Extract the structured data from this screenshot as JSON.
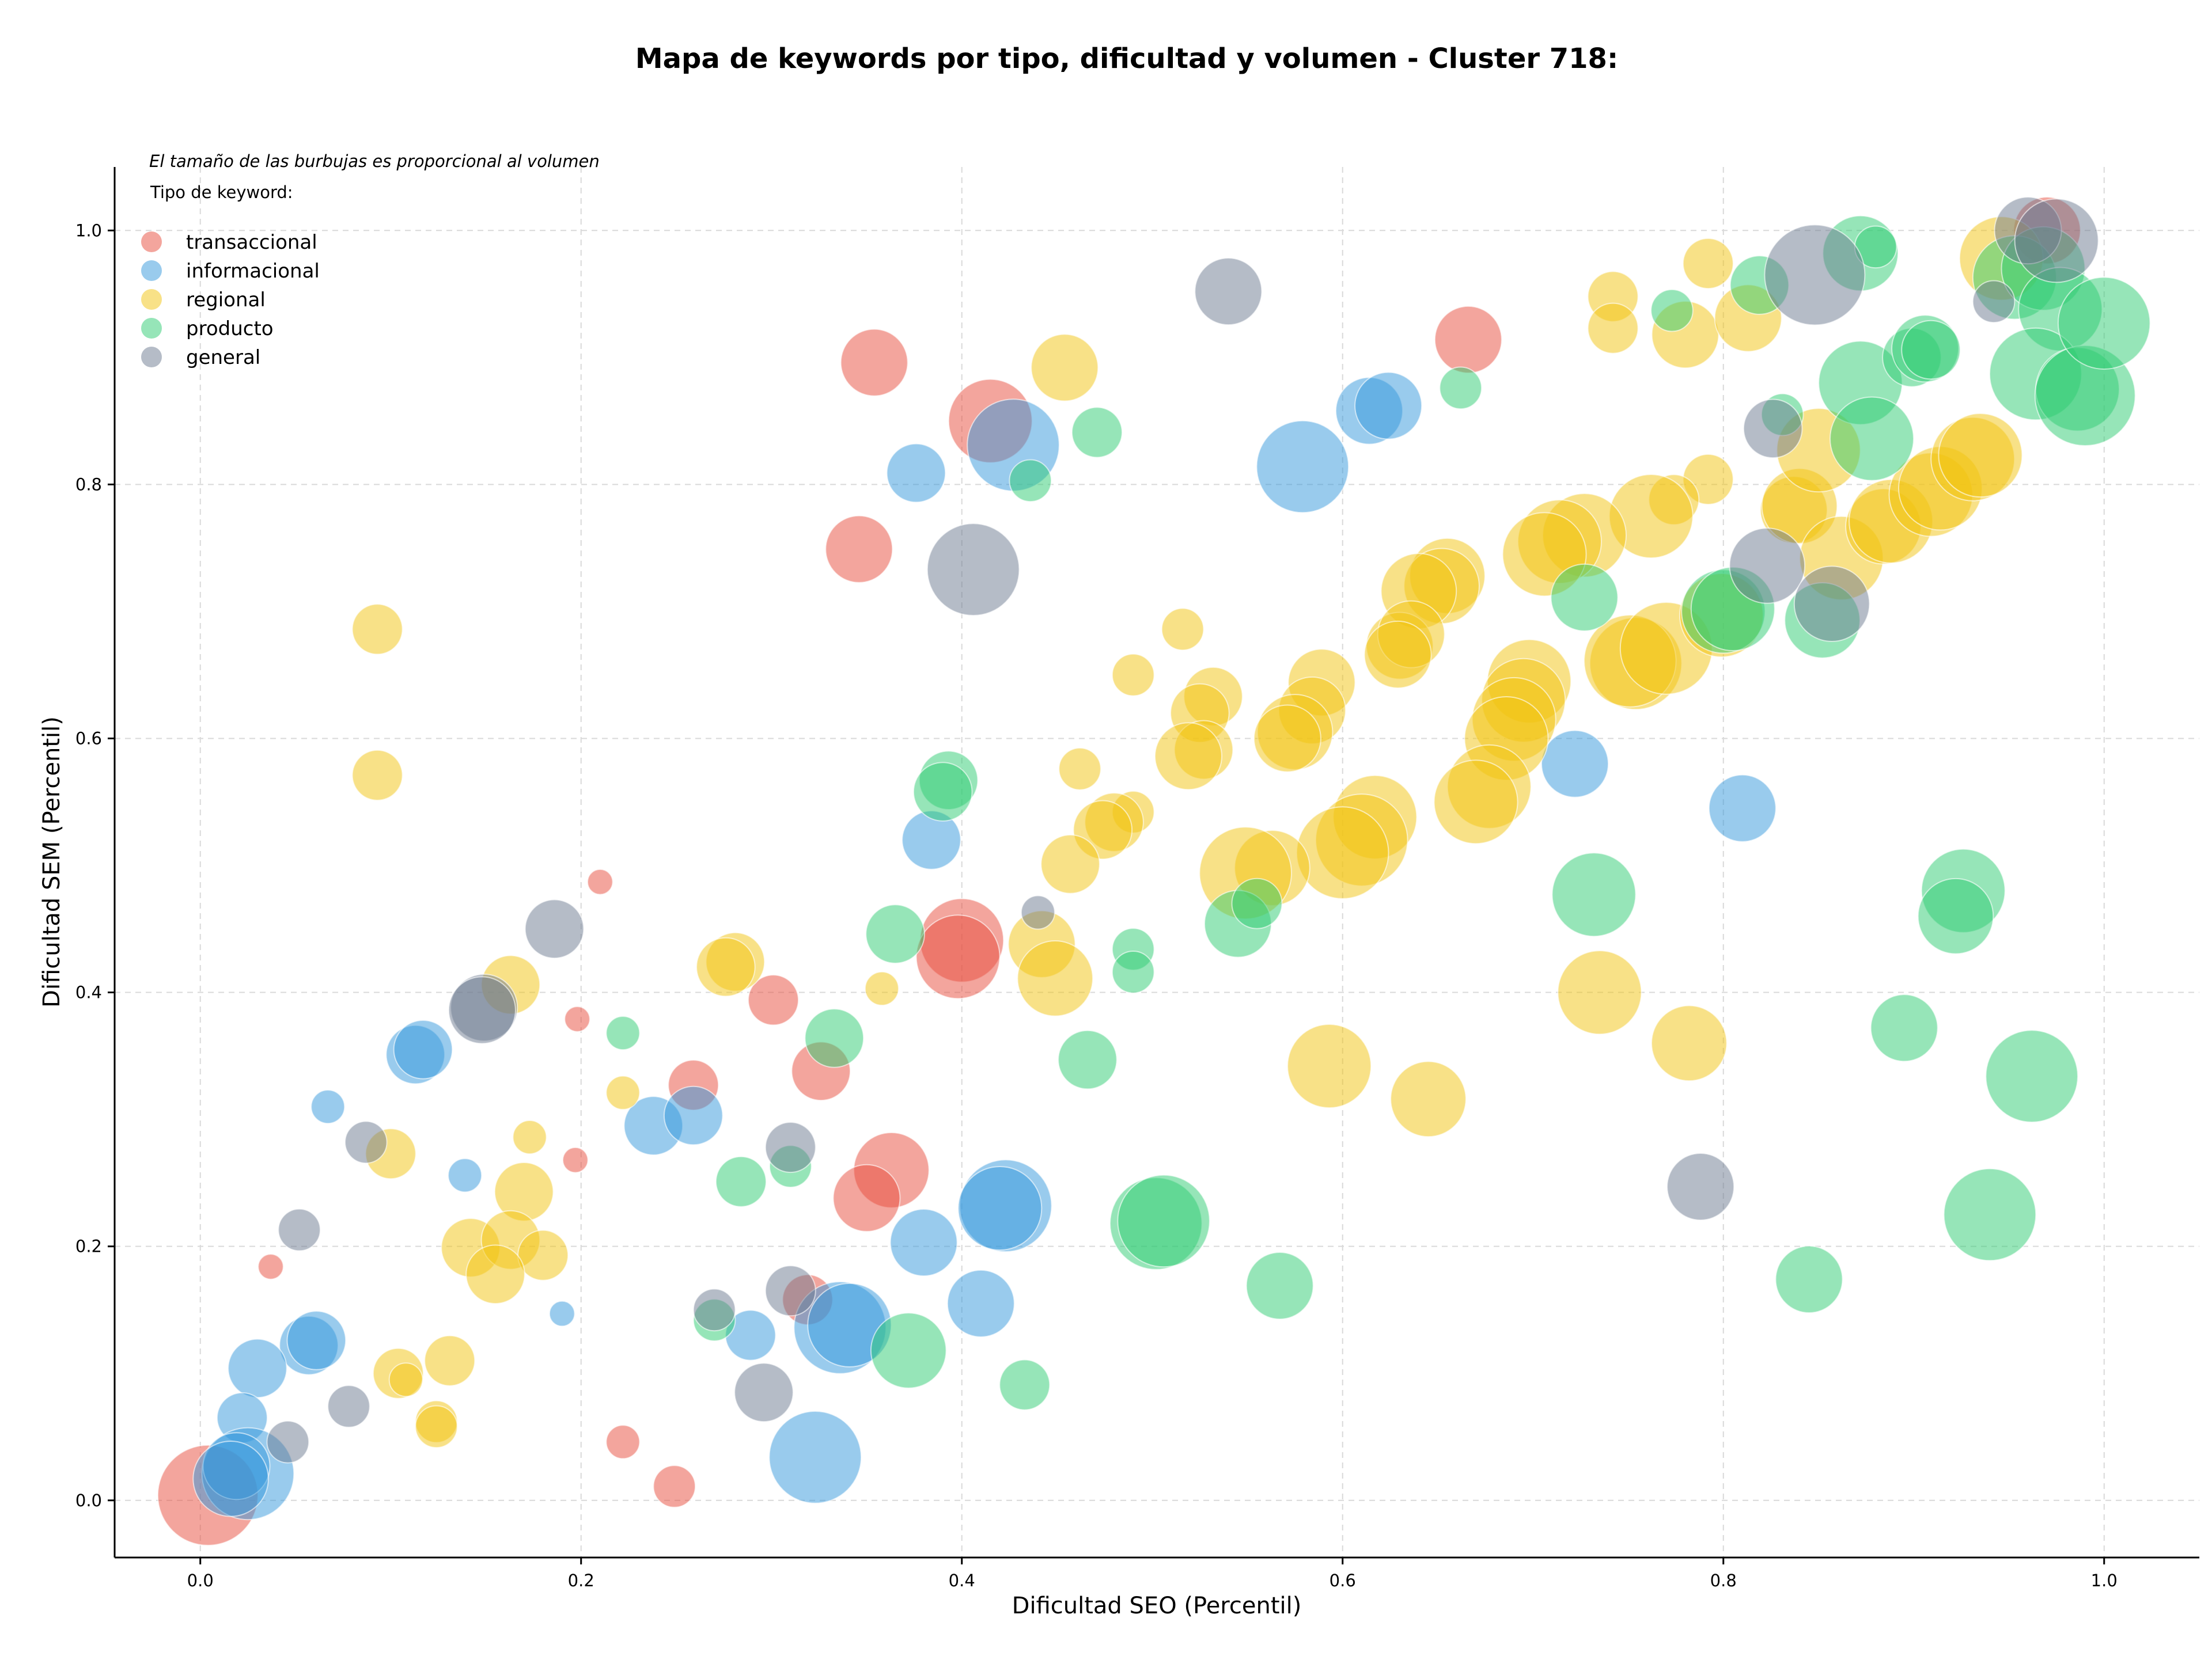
{
  "chart_data": {
    "type": "scatter",
    "title": "Mapa de keywords por tipo, dificultad y volumen - Cluster 718:",
    "xlabel": "Dificultad SEO (Percentil)",
    "ylabel": "Dificultad SEM (Percentil)",
    "note": "El tamaño de las burbujas es proporcional al volumen",
    "legend_title": "Tipo de keyword:",
    "legend_position": "top-left",
    "xlim": [
      -0.045,
      1.05
    ],
    "ylim": [
      -0.045,
      1.05
    ],
    "xticks": [
      0.0,
      0.2,
      0.4,
      0.6,
      0.8,
      1.0
    ],
    "yticks": [
      0.0,
      0.2,
      0.4,
      0.6,
      0.8,
      1.0
    ],
    "xtick_labels": [
      "0.0",
      "0.2",
      "0.4",
      "0.6",
      "0.8",
      "1.0"
    ],
    "ytick_labels": [
      "0.0",
      "0.2",
      "0.4",
      "0.6",
      "0.8",
      "1.0"
    ],
    "grid": true,
    "size_encoding": "volume",
    "series": [
      {
        "name": "transaccional",
        "color": "#e74c3c",
        "points": [
          [
            0.004,
            0.004,
            6
          ],
          [
            0.354,
            0.896,
            4
          ],
          [
            0.415,
            0.85,
            5
          ],
          [
            0.346,
            0.749,
            4
          ],
          [
            0.666,
            0.914,
            4
          ],
          [
            0.97,
            1.0,
            4
          ],
          [
            0.4,
            0.441,
            5
          ],
          [
            0.398,
            0.428,
            5
          ],
          [
            0.21,
            0.487,
            1.5
          ],
          [
            0.198,
            0.379,
            1.5
          ],
          [
            0.301,
            0.394,
            3
          ],
          [
            0.259,
            0.327,
            3
          ],
          [
            0.197,
            0.268,
            1.5
          ],
          [
            0.326,
            0.338,
            3.5
          ],
          [
            0.363,
            0.26,
            4.5
          ],
          [
            0.35,
            0.238,
            4
          ],
          [
            0.037,
            0.184,
            1.5
          ],
          [
            0.319,
            0.158,
            3
          ],
          [
            0.222,
            0.046,
            2
          ],
          [
            0.249,
            0.011,
            2.5
          ]
        ]
      },
      {
        "name": "informacional",
        "color": "#3498db",
        "points": [
          [
            0.376,
            0.809,
            3.5
          ],
          [
            0.427,
            0.831,
            5.5
          ],
          [
            0.579,
            0.814,
            5.5
          ],
          [
            0.614,
            0.858,
            4
          ],
          [
            0.624,
            0.862,
            4
          ],
          [
            0.722,
            0.58,
            4
          ],
          [
            0.81,
            0.545,
            4
          ],
          [
            0.384,
            0.52,
            3.5
          ],
          [
            0.113,
            0.351,
            3.5
          ],
          [
            0.117,
            0.355,
            3.5
          ],
          [
            0.067,
            0.31,
            2
          ],
          [
            0.238,
            0.295,
            3.5
          ],
          [
            0.259,
            0.303,
            3.5
          ],
          [
            0.139,
            0.256,
            2
          ],
          [
            0.423,
            0.232,
            5.5
          ],
          [
            0.42,
            0.23,
            5
          ],
          [
            0.38,
            0.203,
            4
          ],
          [
            0.41,
            0.155,
            4
          ],
          [
            0.19,
            0.147,
            1.5
          ],
          [
            0.336,
            0.136,
            5.5
          ],
          [
            0.341,
            0.138,
            5
          ],
          [
            0.289,
            0.13,
            3
          ],
          [
            0.057,
            0.122,
            3.5
          ],
          [
            0.061,
            0.126,
            3.5
          ],
          [
            0.03,
            0.104,
            3.5
          ],
          [
            0.022,
            0.065,
            3
          ],
          [
            0.025,
            0.021,
            5.5
          ],
          [
            0.019,
            0.027,
            4
          ],
          [
            0.016,
            0.017,
            4.5
          ],
          [
            0.323,
            0.034,
            5.5
          ]
        ]
      },
      {
        "name": "regional",
        "color": "#f1c40f",
        "points": [
          [
            0.093,
            0.686,
            3
          ],
          [
            0.093,
            0.571,
            3
          ],
          [
            0.454,
            0.892,
            4
          ],
          [
            0.742,
            0.948,
            3
          ],
          [
            0.742,
            0.923,
            3
          ],
          [
            0.792,
            0.974,
            3
          ],
          [
            0.78,
            0.918,
            4
          ],
          [
            0.813,
            0.931,
            4
          ],
          [
            0.792,
            0.804,
            3
          ],
          [
            0.774,
            0.788,
            3
          ],
          [
            0.762,
            0.775,
            5
          ],
          [
            0.727,
            0.76,
            5
          ],
          [
            0.714,
            0.755,
            5
          ],
          [
            0.706,
            0.745,
            5
          ],
          [
            0.655,
            0.728,
            4.5
          ],
          [
            0.652,
            0.72,
            4.5
          ],
          [
            0.64,
            0.716,
            4.5
          ],
          [
            0.63,
            0.673,
            4
          ],
          [
            0.636,
            0.682,
            4
          ],
          [
            0.629,
            0.666,
            4
          ],
          [
            0.698,
            0.645,
            5
          ],
          [
            0.695,
            0.63,
            5
          ],
          [
            0.69,
            0.615,
            5
          ],
          [
            0.686,
            0.6,
            5
          ],
          [
            0.677,
            0.562,
            5
          ],
          [
            0.67,
            0.55,
            5
          ],
          [
            0.617,
            0.538,
            5
          ],
          [
            0.61,
            0.52,
            5.5
          ],
          [
            0.6,
            0.51,
            5.5
          ],
          [
            0.589,
            0.644,
            4
          ],
          [
            0.584,
            0.622,
            4
          ],
          [
            0.575,
            0.605,
            4.5
          ],
          [
            0.571,
            0.6,
            4
          ],
          [
            0.532,
            0.633,
            3.5
          ],
          [
            0.525,
            0.62,
            3.5
          ],
          [
            0.527,
            0.591,
            3.5
          ],
          [
            0.519,
            0.586,
            4
          ],
          [
            0.516,
            0.686,
            2.5
          ],
          [
            0.49,
            0.65,
            2.5
          ],
          [
            0.462,
            0.576,
            2.5
          ],
          [
            0.49,
            0.542,
            2.5
          ],
          [
            0.48,
            0.534,
            3.5
          ],
          [
            0.474,
            0.528,
            3.5
          ],
          [
            0.457,
            0.501,
            3.5
          ],
          [
            0.563,
            0.498,
            4.5
          ],
          [
            0.549,
            0.494,
            5.5
          ],
          [
            0.442,
            0.438,
            4
          ],
          [
            0.449,
            0.411,
            4.5
          ],
          [
            0.358,
            0.403,
            2
          ],
          [
            0.163,
            0.406,
            3.5
          ],
          [
            0.281,
            0.424,
            3.5
          ],
          [
            0.276,
            0.42,
            3.5
          ],
          [
            0.754,
            0.659,
            5.5
          ],
          [
            0.751,
            0.661,
            5.5
          ],
          [
            0.77,
            0.671,
            5.5
          ],
          [
            0.799,
            0.697,
            5
          ],
          [
            0.837,
            0.78,
            4
          ],
          [
            0.84,
            0.783,
            4.5
          ],
          [
            0.85,
            0.827,
            5
          ],
          [
            0.862,
            0.742,
            5
          ],
          [
            0.884,
            0.767,
            4.5
          ],
          [
            0.888,
            0.771,
            5
          ],
          [
            0.909,
            0.792,
            5
          ],
          [
            0.914,
            0.797,
            5
          ],
          [
            0.931,
            0.82,
            5
          ],
          [
            0.935,
            0.823,
            5
          ],
          [
            0.946,
            0.978,
            5
          ],
          [
            0.735,
            0.4,
            5
          ],
          [
            0.782,
            0.36,
            4.5
          ],
          [
            0.593,
            0.342,
            5
          ],
          [
            0.645,
            0.316,
            4.5
          ],
          [
            0.1,
            0.273,
            3
          ],
          [
            0.173,
            0.286,
            2
          ],
          [
            0.222,
            0.321,
            2
          ],
          [
            0.17,
            0.243,
            3.5
          ],
          [
            0.142,
            0.199,
            3.5
          ],
          [
            0.163,
            0.205,
            3.5
          ],
          [
            0.18,
            0.193,
            3
          ],
          [
            0.155,
            0.178,
            3.5
          ],
          [
            0.131,
            0.11,
            3
          ],
          [
            0.104,
            0.1,
            3
          ],
          [
            0.108,
            0.095,
            2
          ],
          [
            0.124,
            0.062,
            2.5
          ],
          [
            0.124,
            0.058,
            2.5
          ]
        ]
      },
      {
        "name": "producto",
        "color": "#2ecc71",
        "points": [
          [
            0.872,
            0.982,
            4.5
          ],
          [
            0.819,
            0.957,
            3.5
          ],
          [
            0.773,
            0.937,
            2.5
          ],
          [
            0.662,
            0.876,
            2.5
          ],
          [
            0.471,
            0.841,
            3
          ],
          [
            0.436,
            0.803,
            2.5
          ],
          [
            0.393,
            0.567,
            3.5
          ],
          [
            0.39,
            0.558,
            3.5
          ],
          [
            0.365,
            0.446,
            3.5
          ],
          [
            0.333,
            0.364,
            3.5
          ],
          [
            0.222,
            0.368,
            2
          ],
          [
            0.466,
            0.347,
            3.5
          ],
          [
            0.49,
            0.434,
            2.5
          ],
          [
            0.49,
            0.416,
            2.5
          ],
          [
            0.545,
            0.454,
            4
          ],
          [
            0.555,
            0.47,
            3
          ],
          [
            0.727,
            0.711,
            4
          ],
          [
            0.8,
            0.7,
            5
          ],
          [
            0.805,
            0.702,
            5
          ],
          [
            0.852,
            0.693,
            4.5
          ],
          [
            0.872,
            0.88,
            5
          ],
          [
            0.878,
            0.836,
            5
          ],
          [
            0.899,
            0.9,
            3.5
          ],
          [
            0.906,
            0.907,
            4
          ],
          [
            0.909,
            0.906,
            3.5
          ],
          [
            0.953,
            0.963,
            5
          ],
          [
            0.968,
            0.97,
            5
          ],
          [
            0.977,
            0.938,
            5
          ],
          [
            0.964,
            0.887,
            5.5
          ],
          [
            0.986,
            0.875,
            5
          ],
          [
            0.99,
            0.87,
            6
          ],
          [
            1.0,
            0.927,
            5.5
          ],
          [
            0.831,
            0.855,
            2.5
          ],
          [
            0.732,
            0.477,
            5
          ],
          [
            0.926,
            0.48,
            5
          ],
          [
            0.922,
            0.46,
            4.5
          ],
          [
            0.895,
            0.372,
            4
          ],
          [
            0.962,
            0.334,
            5.5
          ],
          [
            0.94,
            0.225,
            5.5
          ],
          [
            0.845,
            0.174,
            4
          ],
          [
            0.502,
            0.218,
            5.5
          ],
          [
            0.506,
            0.22,
            5.5
          ],
          [
            0.567,
            0.169,
            4
          ],
          [
            0.372,
            0.118,
            4.5
          ],
          [
            0.433,
            0.091,
            3
          ],
          [
            0.284,
            0.251,
            3
          ],
          [
            0.31,
            0.263,
            2.5
          ],
          [
            0.27,
            0.142,
            2.5
          ],
          [
            0.88,
            0.987,
            2.5
          ]
        ]
      },
      {
        "name": "general",
        "color": "#6b7a8f",
        "points": [
          [
            0.54,
            0.952,
            4
          ],
          [
            0.406,
            0.733,
            5.5
          ],
          [
            0.848,
            0.965,
            6
          ],
          [
            0.96,
            1.0,
            4
          ],
          [
            0.975,
            0.992,
            5
          ],
          [
            0.942,
            0.944,
            2.5
          ],
          [
            0.826,
            0.844,
            3.5
          ],
          [
            0.823,
            0.736,
            4.5
          ],
          [
            0.857,
            0.706,
            4.5
          ],
          [
            0.788,
            0.247,
            4
          ],
          [
            0.44,
            0.463,
            2
          ],
          [
            0.186,
            0.45,
            3.5
          ],
          [
            0.149,
            0.388,
            4
          ],
          [
            0.148,
            0.386,
            4
          ],
          [
            0.087,
            0.282,
            2.5
          ],
          [
            0.052,
            0.213,
            2.5
          ],
          [
            0.31,
            0.278,
            3
          ],
          [
            0.31,
            0.165,
            3
          ],
          [
            0.27,
            0.15,
            2.5
          ],
          [
            0.296,
            0.085,
            3.5
          ],
          [
            0.078,
            0.074,
            2.5
          ],
          [
            0.046,
            0.046,
            2.5
          ]
        ]
      }
    ]
  }
}
